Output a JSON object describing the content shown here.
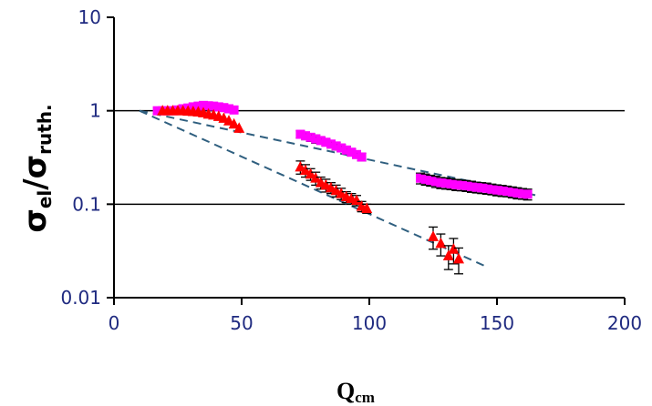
{
  "chart_data": {
    "type": "scatter",
    "title": "",
    "xlabel": {
      "main": "Q",
      "sub": "cm"
    },
    "ylabel": {
      "num_main": "σ",
      "num_sub": "el",
      "sep": "/",
      "den_main": "σ",
      "den_sub": "ruth."
    },
    "xlim": [
      0,
      200
    ],
    "ylim": [
      0.01,
      10
    ],
    "yscale": "log",
    "x_ticks": [
      "0",
      "50",
      "100",
      "150",
      "200"
    ],
    "y_ticks": [
      "0.01",
      "0.1",
      "1",
      "10"
    ],
    "gridlines_y": [
      0.1,
      1
    ],
    "colors": {
      "magenta": "#ff00ff",
      "red": "#ff0000",
      "fit": "#2f5f7f",
      "axis": "#000000",
      "ticks": "#1f2a80"
    },
    "series": [
      {
        "marker": "square",
        "color": "#ff00ff",
        "x": [
          17,
          19,
          21,
          23,
          25,
          27,
          29,
          31,
          33,
          35,
          37,
          39,
          41,
          43,
          45,
          47,
          73,
          75,
          77,
          79,
          81,
          83,
          85,
          87,
          89,
          91,
          93,
          95,
          97,
          120,
          122,
          124,
          126,
          128,
          130,
          132,
          134,
          136,
          138,
          140,
          142,
          144,
          146,
          148,
          150,
          152,
          154,
          156,
          158,
          160,
          162
        ],
        "y": [
          1.0,
          1.0,
          1.0,
          1.0,
          1.02,
          1.05,
          1.07,
          1.1,
          1.12,
          1.14,
          1.13,
          1.12,
          1.1,
          1.08,
          1.05,
          1.02,
          0.56,
          0.54,
          0.52,
          0.5,
          0.48,
          0.46,
          0.44,
          0.42,
          0.4,
          0.38,
          0.36,
          0.34,
          0.32,
          0.19,
          0.185,
          0.18,
          0.175,
          0.17,
          0.168,
          0.165,
          0.162,
          0.16,
          0.158,
          0.155,
          0.152,
          0.15,
          0.148,
          0.145,
          0.142,
          0.14,
          0.138,
          0.135,
          0.132,
          0.13,
          0.128
        ],
        "err": [
          0,
          0,
          0,
          0,
          0,
          0,
          0,
          0,
          0,
          0,
          0,
          0,
          0,
          0,
          0,
          0,
          0.05,
          0.05,
          0.05,
          0.05,
          0.04,
          0.04,
          0.04,
          0.04,
          0.035,
          0.035,
          0.03,
          0.03,
          0.03,
          0.025,
          0.025,
          0.024,
          0.024,
          0.023,
          0.023,
          0.022,
          0.022,
          0.021,
          0.021,
          0.021,
          0.02,
          0.02,
          0.02,
          0.019,
          0.019,
          0.019,
          0.018,
          0.018,
          0.018,
          0.017,
          0.017
        ]
      },
      {
        "marker": "triangle",
        "color": "#ff0000",
        "x": [
          19,
          21,
          23,
          25,
          27,
          29,
          31,
          33,
          35,
          37,
          39,
          41,
          43,
          45,
          47,
          49,
          73,
          75,
          77,
          79,
          81,
          83,
          85,
          87,
          89,
          91,
          93,
          95,
          97,
          99,
          125,
          128,
          131,
          133,
          135
        ],
        "y": [
          1.0,
          1.0,
          1.0,
          1.0,
          1.0,
          0.99,
          0.98,
          0.97,
          0.95,
          0.92,
          0.9,
          0.87,
          0.83,
          0.78,
          0.72,
          0.65,
          0.25,
          0.23,
          0.21,
          0.19,
          0.17,
          0.16,
          0.15,
          0.14,
          0.13,
          0.12,
          0.115,
          0.11,
          0.095,
          0.09,
          0.045,
          0.038,
          0.028,
          0.033,
          0.026
        ],
        "err": [
          0,
          0,
          0,
          0,
          0,
          0,
          0,
          0,
          0,
          0,
          0,
          0,
          0,
          0,
          0,
          0,
          0.04,
          0.035,
          0.03,
          0.03,
          0.025,
          0.025,
          0.02,
          0.02,
          0.018,
          0.016,
          0.015,
          0.014,
          0.012,
          0.01,
          0.012,
          0.01,
          0.008,
          0.01,
          0.008
        ]
      }
    ],
    "fit_lines": [
      {
        "x": [
          10,
          165
        ],
        "y": [
          1.0,
          0.125
        ]
      },
      {
        "x": [
          10,
          145
        ],
        "y": [
          1.0,
          0.022
        ]
      }
    ]
  }
}
